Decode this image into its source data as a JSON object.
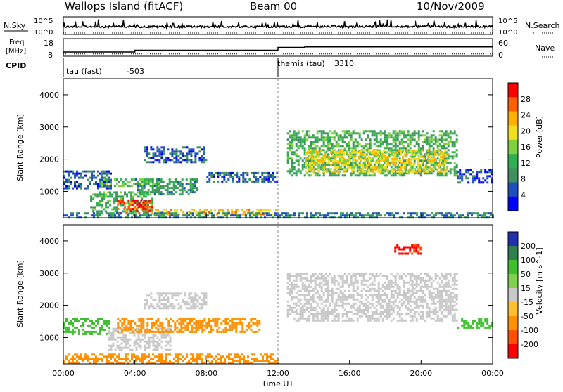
{
  "header": {
    "station": "Wallops Island (fitACF)",
    "beam": "Beam 00",
    "date": "10/Nov/2009"
  },
  "noise_panel": {
    "left_label": "N.Sky",
    "left_ticks": [
      "10^5",
      "10^0"
    ],
    "right_ticks": [
      "10^5",
      "10^0"
    ],
    "right_label": "N.Search"
  },
  "freq_panel": {
    "left_label_top": "Freq.",
    "left_label_bottom": "[MHz]",
    "left_ticks": [
      "18",
      "8"
    ],
    "right_ticks": [
      "60",
      "0"
    ],
    "right_label": "Nave",
    "freq_steps": [
      [
        0,
        10.4
      ],
      [
        4,
        11.4
      ],
      [
        12,
        13.0
      ],
      [
        13.5,
        13.3
      ],
      [
        24,
        13.3
      ]
    ],
    "nave_level": 8
  },
  "cpid_panel": {
    "label": "CPID",
    "programs": [
      {
        "name": "tau (fast)",
        "id": "-503",
        "start_hour": 0
      },
      {
        "name": "themis (tau)",
        "id": "3310",
        "start_hour": 12
      }
    ]
  },
  "chart_data": [
    {
      "type": "heatmap",
      "quantity": "Power",
      "ylabel": "Slant Range [km]",
      "xlabel": "Time UT",
      "x_ticks": [
        "00:00",
        "04:00",
        "08:00",
        "12:00",
        "16:00",
        "20:00",
        "00:00"
      ],
      "y_ticks": [
        "1000",
        "2000",
        "3000",
        "4000"
      ],
      "xlim": [
        0,
        24
      ],
      "ylim": [
        180,
        4500
      ],
      "colorbar": {
        "label": "Power [dB]",
        "ticks": [
          "28",
          "24",
          "20",
          "16",
          "12",
          "8",
          "4"
        ],
        "range": [
          0,
          32
        ],
        "colors": [
          "#0000ff",
          "#1f4fbf",
          "#3f8f5f",
          "#2faf4f",
          "#7fd03f",
          "#f0e020",
          "#ffb000",
          "#ff6000",
          "#ff0000"
        ]
      },
      "echo_regions": [
        {
          "t0": 0.0,
          "t1": 2.6,
          "r0": 1100,
          "r1": 1650,
          "level": 6
        },
        {
          "t0": 1.5,
          "t1": 5.0,
          "r0": 300,
          "r1": 1000,
          "level": 12
        },
        {
          "t0": 3.0,
          "t1": 5.0,
          "r0": 300,
          "r1": 750,
          "level": 28
        },
        {
          "t0": 2.0,
          "t1": 5.5,
          "r0": 1150,
          "r1": 1400,
          "level": 14
        },
        {
          "t0": 5.0,
          "t1": 12.0,
          "r0": 300,
          "r1": 450,
          "level": 22
        },
        {
          "t0": 4.0,
          "t1": 7.5,
          "r0": 900,
          "r1": 1400,
          "level": 10
        },
        {
          "t0": 4.5,
          "t1": 8.0,
          "r0": 1900,
          "r1": 2400,
          "level": 6
        },
        {
          "t0": 8.0,
          "t1": 12.0,
          "r0": 1300,
          "r1": 1600,
          "level": 6
        },
        {
          "t0": 12.5,
          "t1": 22.0,
          "r0": 1500,
          "r1": 2900,
          "level": 12
        },
        {
          "t0": 13.5,
          "t1": 21.5,
          "r0": 1600,
          "r1": 2300,
          "level": 20
        },
        {
          "t0": 22.0,
          "t1": 24.0,
          "r0": 1300,
          "r1": 1700,
          "level": 5
        },
        {
          "t0": 0.0,
          "t1": 24.0,
          "r0": 180,
          "r1": 350,
          "level": 8
        }
      ]
    },
    {
      "type": "heatmap",
      "quantity": "Velocity",
      "ylabel": "Slant Range [km]",
      "xlabel": "Time UT",
      "x_ticks": [
        "00:00",
        "04:00",
        "08:00",
        "12:00",
        "16:00",
        "20:00",
        "00:00"
      ],
      "y_ticks": [
        "1000",
        "2000",
        "3000",
        "4000"
      ],
      "xlim": [
        0,
        24
      ],
      "ylim": [
        180,
        4500
      ],
      "colorbar": {
        "label": "Velocity [m s^-1]",
        "ticks": [
          "200",
          "100",
          "50",
          "15",
          "-15",
          "-50",
          "-100",
          "-200"
        ],
        "colors": [
          "#2030b0",
          "#2f7f4f",
          "#3fbf2f",
          "#80d050",
          "#c8c8c8",
          "#ffc030",
          "#ff9000",
          "#ff5000",
          "#ff0000"
        ]
      },
      "echo_regions": [
        {
          "t0": 0.0,
          "t1": 2.5,
          "r0": 1100,
          "r1": 1600,
          "level": 60
        },
        {
          "t0": 2.5,
          "t1": 6.0,
          "r0": 600,
          "r1": 1300,
          "level": 0
        },
        {
          "t0": 3.0,
          "t1": 11.0,
          "r0": 1150,
          "r1": 1600,
          "level": -40
        },
        {
          "t0": 4.5,
          "t1": 8.0,
          "r0": 1900,
          "r1": 2400,
          "level": 0
        },
        {
          "t0": 0.0,
          "t1": 12.0,
          "r0": 200,
          "r1": 500,
          "level": -40
        },
        {
          "t0": 12.5,
          "t1": 22.0,
          "r0": 1500,
          "r1": 3000,
          "level": 0
        },
        {
          "t0": 22.0,
          "t1": 24.0,
          "r0": 1300,
          "r1": 1600,
          "level": 60
        },
        {
          "t0": 18.5,
          "t1": 20.0,
          "r0": 3600,
          "r1": 3900,
          "level": -150
        }
      ]
    }
  ]
}
